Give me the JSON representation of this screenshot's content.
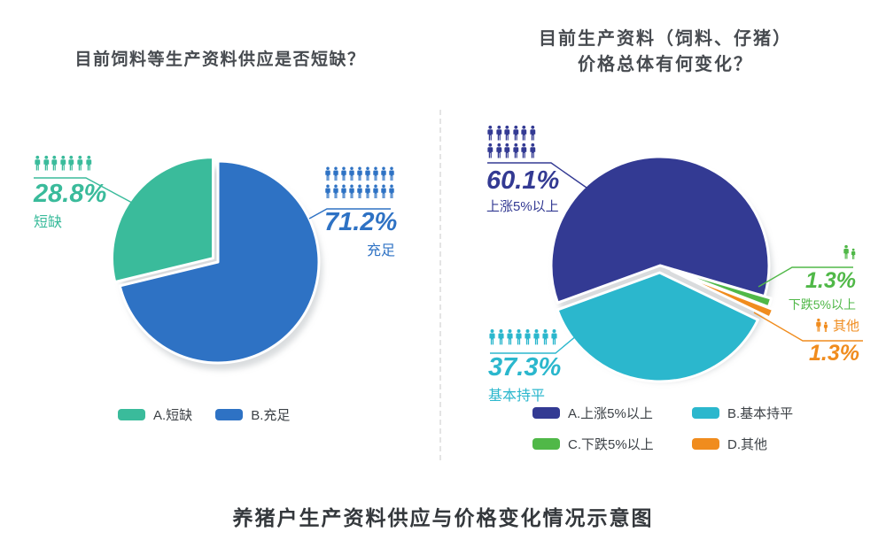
{
  "caption": "养猪户生产资料供应与价格变化情况示意图",
  "ui_colors": {
    "title_text": "#474b50",
    "caption_text": "#34383c",
    "legend_text": "#3c4146",
    "divider": "#e4e4e4"
  },
  "chart_data": [
    {
      "type": "pie",
      "title": "目前饲料等生产资料供应是否短缺？",
      "slices": [
        {
          "label": "充足",
          "legend_label": "B.充足",
          "pct": 71.2,
          "pct_label": "71.2%",
          "color": "#2e72c4",
          "icon_count": 18
        },
        {
          "label": "短缺",
          "legend_label": "A.短缺",
          "pct": 28.8,
          "pct_label": "28.8%",
          "color": "#3abb9b",
          "icon_count": 7
        }
      ],
      "legend": [
        {
          "label": "A.短缺",
          "color": "#3abb9b"
        },
        {
          "label": "B.充足",
          "color": "#2e72c4"
        }
      ]
    },
    {
      "type": "pie",
      "title": "目前生产资料（饲料、仔猪）价格总体有何变化？",
      "title_lines": [
        "目前生产资料（饲料、仔猪）",
        "价格总体有何变化？"
      ],
      "slices": [
        {
          "label": "上涨5%以上",
          "legend_label": "A.上涨5%以上",
          "pct": 60.1,
          "pct_label": "60.1%",
          "color": "#333a93",
          "icon_count": 12
        },
        {
          "label": "下跌5%以上",
          "legend_label": "C.下跌5%以上",
          "pct": 1.3,
          "pct_label": "1.3%",
          "color": "#50b848",
          "icon_count": 2
        },
        {
          "label": "其他",
          "legend_label": "D.其他",
          "pct": 1.3,
          "pct_label": "1.3%",
          "color": "#f08c1e",
          "icon_count": 2
        },
        {
          "label": "基本持平",
          "legend_label": "B.基本持平",
          "pct": 37.3,
          "pct_label": "37.3%",
          "color": "#2bb7cd",
          "icon_count": 8
        }
      ],
      "legend": [
        {
          "label": "A.上涨5%以上",
          "color": "#333a93"
        },
        {
          "label": "B.基本持平",
          "color": "#2bb7cd"
        },
        {
          "label": "C.下跌5%以上",
          "color": "#50b848"
        },
        {
          "label": "D.其他",
          "color": "#f08c1e"
        }
      ]
    }
  ]
}
